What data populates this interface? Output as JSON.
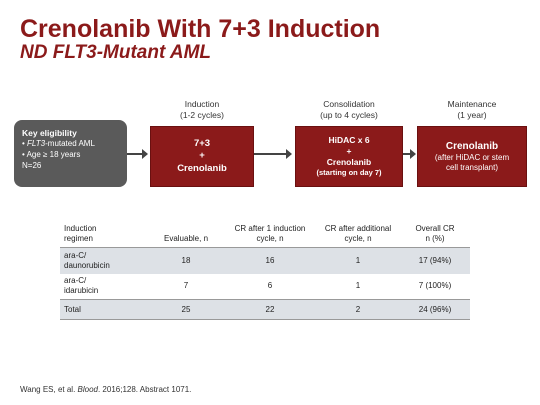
{
  "title": {
    "line1": "Crenolanib With 7+3 Induction",
    "line2_prefix": "ND FLT3-",
    "line2_italic": "Mutant AML"
  },
  "eligibility": {
    "heading": "Key eligibility",
    "item1_italic": "FLT3",
    "item1_rest": "-mutated AML",
    "item2": "Age ≥ 18 years",
    "n": "N=26"
  },
  "phases": {
    "induction": {
      "label": "Induction",
      "sub": "(1-2 cycles)",
      "line1": "7+3",
      "plus": "+",
      "line2": "Crenolanib"
    },
    "consolidation": {
      "label": "Consolidation",
      "sub": "(up to 4 cycles)",
      "line1": "HiDAC x 6",
      "plus": "+",
      "line2": "Crenolanib",
      "line3": "(starting on day 7)"
    },
    "maintenance": {
      "label": "Maintenance",
      "sub": "(1 year)",
      "line1": "Crenolanib",
      "line2": "(after HiDAC or stem",
      "line3": "cell transplant)"
    }
  },
  "table": {
    "headers": {
      "regimen_l1": "Induction",
      "regimen_l2": "regimen",
      "evaluable": "Evaluable, n",
      "cr1_l1": "CR after 1 induction",
      "cr1_l2": "cycle, n",
      "cr2_l1": "CR after additional",
      "cr2_l2": "cycle, n",
      "overall_l1": "Overall CR",
      "overall_l2": "n (%)"
    },
    "rows": [
      {
        "regimen_l1": "ara-C/",
        "regimen_l2": "daunorubicin",
        "evaluable": "18",
        "cr1": "16",
        "cr2": "1",
        "overall": "17 (94%)"
      },
      {
        "regimen_l1": "ara-C/",
        "regimen_l2": "idarubicin",
        "evaluable": "7",
        "cr1": "6",
        "cr2": "1",
        "overall": "7 (100%)"
      }
    ],
    "total": {
      "label": "Total",
      "evaluable": "25",
      "cr1": "22",
      "cr2": "2",
      "overall": "24 (96%)"
    }
  },
  "citation": {
    "prefix": "Wang ES, et al. ",
    "journal": "Blood",
    "suffix": ". 2016;128. Abstract 1071."
  },
  "colors": {
    "accent": "#8b1a1a",
    "gray_box": "#5a5a5a",
    "row_shade": "#dde1e6"
  }
}
